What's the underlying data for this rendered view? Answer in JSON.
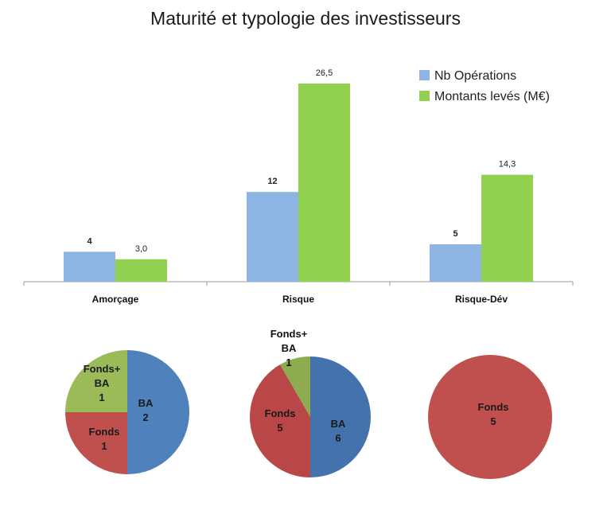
{
  "chart_data": [
    {
      "type": "bar",
      "title": "Maturité et typologie des investisseurs",
      "categories": [
        "Amorçage",
        "Risque",
        "Risque-Dév"
      ],
      "series": [
        {
          "name": "Nb Opérations",
          "values": [
            4,
            12,
            5
          ],
          "labels": [
            "4",
            "12",
            "5"
          ],
          "color": "#8eb4e3"
        },
        {
          "name": "Montants levés (M€)",
          "values": [
            3.0,
            26.5,
            14.3
          ],
          "labels": [
            "3,0",
            "26,5",
            "14,3"
          ],
          "color": "#92d050"
        }
      ],
      "ylim": [
        0,
        26.5
      ],
      "grid": false,
      "legend": "top-right"
    },
    {
      "type": "pie",
      "category": "Amorçage",
      "slices": [
        {
          "name": "BA",
          "value": 2,
          "color": "#4f81bd"
        },
        {
          "name": "Fonds",
          "value": 1,
          "color": "#c0504d"
        },
        {
          "name": "Fonds+ BA",
          "value": 1,
          "color": "#9bbb59"
        }
      ]
    },
    {
      "type": "pie",
      "category": "Risque",
      "slices": [
        {
          "name": "BA",
          "value": 6,
          "color": "#4372ad"
        },
        {
          "name": "Fonds",
          "value": 5,
          "color": "#b94747"
        },
        {
          "name": "Fonds+ BA",
          "value": 1,
          "color": "#8cac4f"
        }
      ]
    },
    {
      "type": "pie",
      "category": "Risque-Dév",
      "slices": [
        {
          "name": "Fonds",
          "value": 5,
          "color": "#c0504d"
        }
      ]
    }
  ]
}
